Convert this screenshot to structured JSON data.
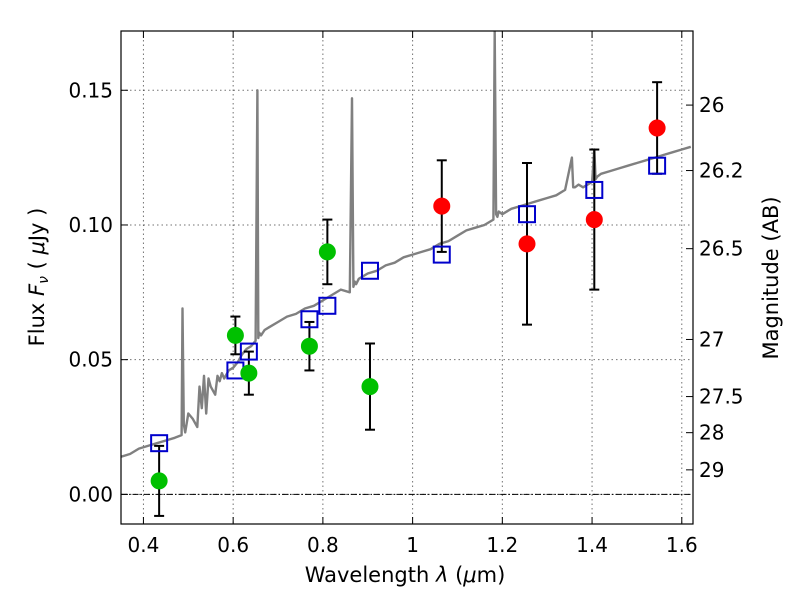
{
  "chart_data": {
    "type": "scatter",
    "xlabel": "Wavelength  λ (μm)",
    "ylabel": "Flux  F_ν  ( μJy )",
    "y2label": "Magnitude (AB)",
    "xlim": [
      0.35,
      1.625
    ],
    "ylim": [
      -0.011,
      0.172
    ],
    "x_ticks": [
      0.4,
      0.6,
      0.8,
      1.0,
      1.2,
      1.4,
      1.6
    ],
    "x_tick_labels": [
      "0.4",
      "0.6",
      "0.8",
      "1",
      "1.2",
      "1.4",
      "1.6"
    ],
    "y_ticks": [
      0.0,
      0.05,
      0.1,
      0.15
    ],
    "y_tick_labels": [
      "0.00",
      "0.05",
      "0.10",
      "0.15"
    ],
    "y2_ticks": [
      {
        "label": "26",
        "flux": 0.1445
      },
      {
        "label": "26.2",
        "flux": 0.1202
      },
      {
        "label": "26.5",
        "flux": 0.0912
      },
      {
        "label": "27",
        "flux": 0.0575
      },
      {
        "label": "27.5",
        "flux": 0.0363
      },
      {
        "label": "28",
        "flux": 0.0229
      },
      {
        "label": "29",
        "flux": 0.0091
      }
    ],
    "grid": true,
    "legend": "none",
    "colors": {
      "spectrum": "#808080",
      "green_points": "#00c000",
      "red_points": "#ff0000",
      "model_boxes": "#0000cc",
      "errorbars": "#000000",
      "zero_line": "#000000"
    },
    "series": [
      {
        "kind": "line",
        "color": "#808080",
        "x": [
          0.35,
          0.37,
          0.39,
          0.41,
          0.43,
          0.45,
          0.47,
          0.485,
          0.487,
          0.49,
          0.493,
          0.5,
          0.51,
          0.52,
          0.525,
          0.53,
          0.535,
          0.54,
          0.545,
          0.55,
          0.56,
          0.565,
          0.57,
          0.575,
          0.58,
          0.59,
          0.6,
          0.61,
          0.62,
          0.63,
          0.64,
          0.65,
          0.654,
          0.656,
          0.658,
          0.662,
          0.67,
          0.68,
          0.7,
          0.72,
          0.74,
          0.76,
          0.78,
          0.8,
          0.82,
          0.84,
          0.86,
          0.865,
          0.868,
          0.871,
          0.874,
          0.88,
          0.9,
          0.92,
          0.94,
          0.96,
          0.98,
          1.0,
          1.02,
          1.04,
          1.06,
          1.08,
          1.1,
          1.12,
          1.14,
          1.16,
          1.18,
          1.183,
          1.186,
          1.189,
          1.192,
          1.2,
          1.22,
          1.24,
          1.26,
          1.28,
          1.3,
          1.32,
          1.34,
          1.355,
          1.358,
          1.362,
          1.37,
          1.38,
          1.4,
          1.405,
          1.408,
          1.412,
          1.42,
          1.44,
          1.46,
          1.48,
          1.5,
          1.52,
          1.54,
          1.56,
          1.58,
          1.6,
          1.62
        ],
        "y": [
          0.014,
          0.015,
          0.017,
          0.018,
          0.019,
          0.02,
          0.021,
          0.022,
          0.069,
          0.026,
          0.023,
          0.03,
          0.028,
          0.025,
          0.04,
          0.032,
          0.044,
          0.03,
          0.043,
          0.04,
          0.037,
          0.044,
          0.042,
          0.045,
          0.043,
          0.046,
          0.047,
          0.049,
          0.052,
          0.054,
          0.055,
          0.057,
          0.15,
          0.058,
          0.06,
          0.059,
          0.061,
          0.062,
          0.064,
          0.066,
          0.067,
          0.069,
          0.07,
          0.072,
          0.074,
          0.076,
          0.075,
          0.147,
          0.077,
          0.079,
          0.078,
          0.08,
          0.082,
          0.083,
          0.085,
          0.086,
          0.088,
          0.089,
          0.09,
          0.091,
          0.093,
          0.094,
          0.096,
          0.098,
          0.099,
          0.1,
          0.102,
          0.172,
          0.104,
          0.103,
          0.105,
          0.104,
          0.106,
          0.107,
          0.108,
          0.109,
          0.11,
          0.111,
          0.113,
          0.125,
          0.114,
          0.114,
          0.115,
          0.114,
          0.116,
          0.128,
          0.117,
          0.118,
          0.119,
          0.12,
          0.121,
          0.122,
          0.123,
          0.124,
          0.125,
          0.126,
          0.127,
          0.128,
          0.129
        ]
      },
      {
        "kind": "points",
        "color": "#00c000",
        "x": [
          0.435,
          0.605,
          0.635,
          0.77,
          0.81,
          0.905
        ],
        "y": [
          0.005,
          0.059,
          0.045,
          0.055,
          0.09,
          0.04
        ],
        "yerr": [
          0.013,
          0.007,
          0.008,
          0.009,
          0.012,
          0.016
        ]
      },
      {
        "kind": "points",
        "color": "#ff0000",
        "x": [
          1.065,
          1.255,
          1.405,
          1.545
        ],
        "y": [
          0.107,
          0.093,
          0.102,
          0.136
        ],
        "yerr": [
          0.017,
          0.03,
          0.026,
          0.017
        ]
      },
      {
        "kind": "boxes",
        "color": "#0000cc",
        "x": [
          0.435,
          0.605,
          0.635,
          0.77,
          0.81,
          0.905,
          1.065,
          1.255,
          1.405,
          1.545
        ],
        "y": [
          0.019,
          0.046,
          0.053,
          0.065,
          0.07,
          0.083,
          0.089,
          0.104,
          0.113,
          0.122
        ]
      }
    ]
  }
}
